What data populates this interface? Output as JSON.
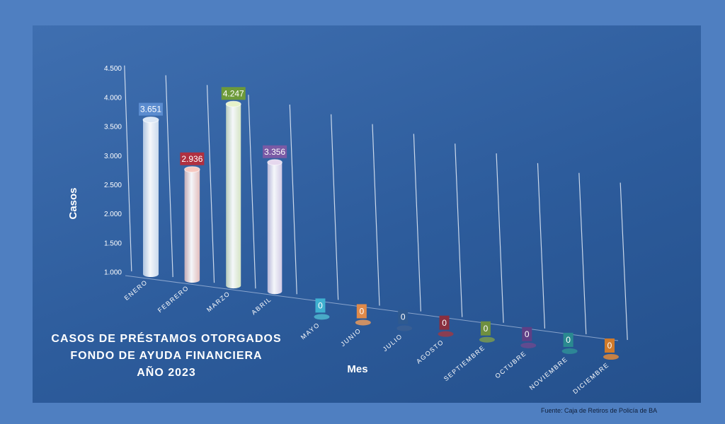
{
  "chart_data": {
    "type": "bar",
    "title_lines": [
      "CASOS DE PRÉSTAMOS OTORGADOS",
      "FONDO DE AYUDA FINANCIERA",
      "AÑO 2023"
    ],
    "xlabel": "Mes",
    "ylabel": "Casos",
    "ylim": [
      1000,
      4500
    ],
    "yticks": [
      "1.000",
      "1.500",
      "2.000",
      "2.500",
      "3.000",
      "3.500",
      "4.000",
      "4.500"
    ],
    "ytick_values": [
      1000,
      1500,
      2000,
      2500,
      3000,
      3500,
      4000,
      4500
    ],
    "categories": [
      "ENERO",
      "FEBRERO",
      "MARZO",
      "ABRIL",
      "MAYO",
      "JUNIO",
      "JULIO",
      "AGOSTO",
      "SEPTIEMBRE",
      "OCTUBRE",
      "NOVIEMBRE",
      "DICIEMBRE"
    ],
    "values": [
      3651,
      2936,
      4247,
      3356,
      0,
      0,
      0,
      0,
      0,
      0,
      0,
      0
    ],
    "value_labels": [
      "3.651",
      "2.936",
      "4.247",
      "3.356",
      "0",
      "0",
      "0",
      "0",
      "0",
      "0",
      "0",
      "0"
    ],
    "bar_colors": [
      "#dbe7f5",
      "#f6c8c0",
      "#e7f2c9",
      "#e6d8ee",
      "#4fb7cf",
      "#e99a5c",
      "#3b5f93",
      "#9a3a48",
      "#7a9a4f",
      "#6a4a8e",
      "#2f8f96",
      "#e08a3a"
    ],
    "label_colors": [
      "#5b8ccf",
      "#b03040",
      "#6d9a3a",
      "#7a5aa5",
      "#3fb0d0",
      "#e08a4a",
      "#2f5a90",
      "#8a2f3f",
      "#6f8f3f",
      "#5f3f85",
      "#2a8a90",
      "#d07a2a"
    ],
    "grid": true
  },
  "source": "Fuente: Caja de Retiros de Policía de BA"
}
